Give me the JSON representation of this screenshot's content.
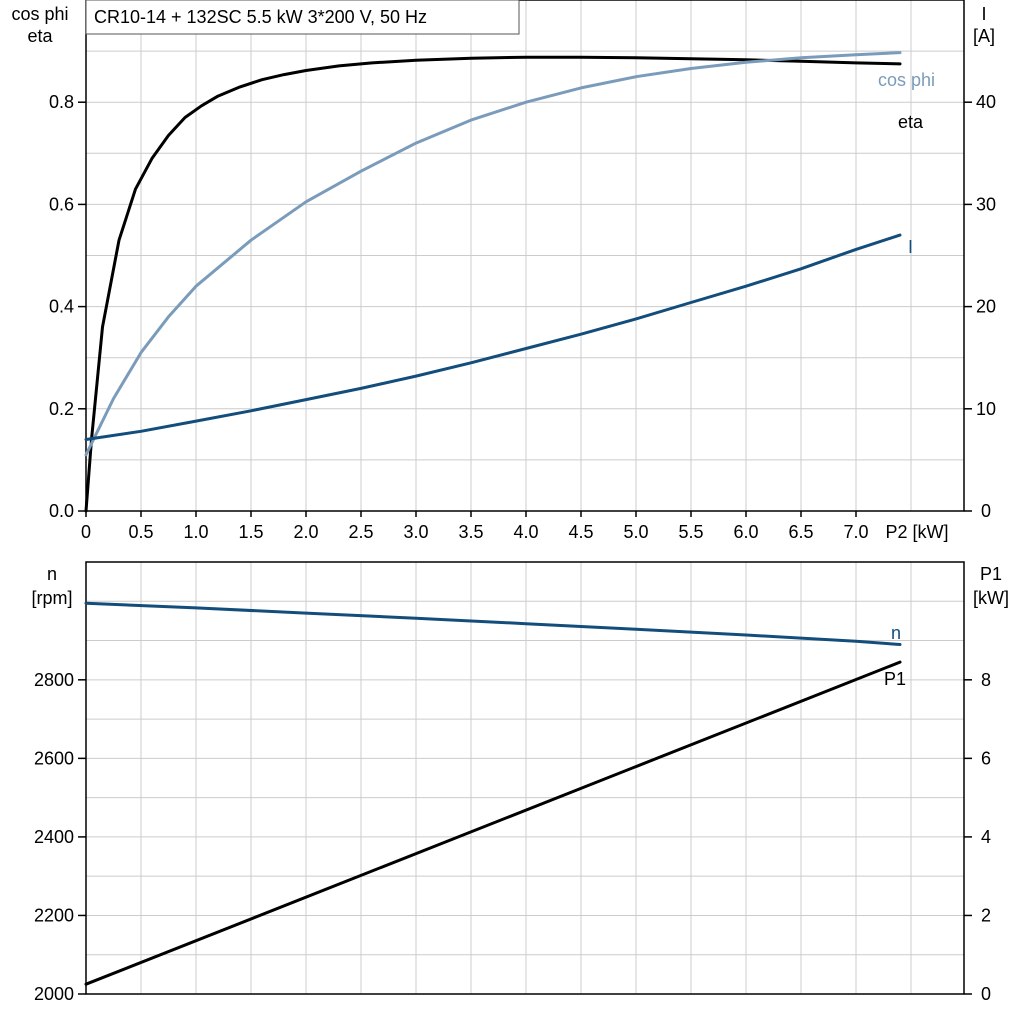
{
  "title": "CR10-14 + 132SC   5.5 kW   3*200 V, 50 Hz",
  "chart_data": [
    {
      "type": "line",
      "x_label": "P2 [kW]",
      "x_ticks": [
        "0",
        "0.5",
        "1.0",
        "1.5",
        "2.0",
        "2.5",
        "3.0",
        "3.5",
        "4.0",
        "4.5",
        "5.0",
        "5.5",
        "6.0",
        "6.5",
        "7.0"
      ],
      "xlim": [
        0,
        8.0
      ],
      "y_left": {
        "label_line1": "cos phi",
        "label_line2": "eta",
        "ticks": [
          "0.0",
          "0.2",
          "0.4",
          "0.6",
          "0.8"
        ],
        "ylim": [
          0,
          1.0
        ]
      },
      "y_right": {
        "label_line1": "I",
        "label_line2": "[A]",
        "ticks": [
          "0",
          "10",
          "20",
          "30",
          "40"
        ],
        "ylim": [
          0,
          50
        ]
      },
      "grid": true,
      "series": [
        {
          "name": "eta",
          "axis": "left",
          "color": "#000000",
          "x": [
            0,
            0.05,
            0.15,
            0.3,
            0.45,
            0.6,
            0.75,
            0.9,
            1.05,
            1.2,
            1.4,
            1.6,
            1.8,
            2.0,
            2.3,
            2.6,
            3.0,
            3.5,
            4.0,
            4.5,
            5.0,
            5.5,
            6.0,
            6.5,
            7.0,
            7.4
          ],
          "y": [
            0.0,
            0.14,
            0.36,
            0.53,
            0.63,
            0.69,
            0.735,
            0.77,
            0.793,
            0.812,
            0.83,
            0.844,
            0.854,
            0.862,
            0.871,
            0.877,
            0.882,
            0.886,
            0.888,
            0.888,
            0.887,
            0.885,
            0.883,
            0.88,
            0.877,
            0.875
          ]
        },
        {
          "name": "cos phi",
          "axis": "left",
          "color": "#7a9cba",
          "x": [
            0,
            0.25,
            0.5,
            0.75,
            1.0,
            1.5,
            2.0,
            2.5,
            3.0,
            3.5,
            4.0,
            4.5,
            5.0,
            5.5,
            6.0,
            6.5,
            7.0,
            7.4
          ],
          "y": [
            0.11,
            0.22,
            0.31,
            0.38,
            0.44,
            0.53,
            0.605,
            0.665,
            0.72,
            0.765,
            0.8,
            0.828,
            0.85,
            0.866,
            0.878,
            0.887,
            0.893,
            0.897
          ]
        },
        {
          "name": "I",
          "axis": "right",
          "color": "#124d7c",
          "x": [
            0,
            0.5,
            1.0,
            1.5,
            2.0,
            2.5,
            3.0,
            3.5,
            4.0,
            4.5,
            5.0,
            5.5,
            6.0,
            6.5,
            7.0,
            7.4
          ],
          "y": [
            7.0,
            7.8,
            8.8,
            9.8,
            10.9,
            12.0,
            13.2,
            14.5,
            15.9,
            17.3,
            18.8,
            20.4,
            22.0,
            23.7,
            25.6,
            27.0
          ]
        }
      ]
    },
    {
      "type": "line",
      "x_label": "",
      "xlim": [
        0,
        8.0
      ],
      "y_left": {
        "label_line1": "n",
        "label_line2": "[rpm]",
        "ticks": [
          "2000",
          "2200",
          "2400",
          "2600",
          "2800"
        ],
        "ylim": [
          2000,
          3100
        ]
      },
      "y_right": {
        "label_line1": "P1",
        "label_line2": "[kW]",
        "ticks": [
          "0",
          "2",
          "4",
          "6",
          "8"
        ],
        "ylim": [
          0,
          11
        ]
      },
      "grid": true,
      "series": [
        {
          "name": "n",
          "axis": "left",
          "color": "#124d7c",
          "x": [
            0,
            1.0,
            2.0,
            3.0,
            4.0,
            5.0,
            6.0,
            7.0,
            7.4
          ],
          "y": [
            2995,
            2983,
            2970,
            2957,
            2943,
            2929,
            2914,
            2898,
            2890
          ]
        },
        {
          "name": "P1",
          "axis": "right",
          "color": "#000000",
          "x": [
            0,
            7.4
          ],
          "y": [
            0.25,
            8.45
          ]
        }
      ]
    }
  ]
}
